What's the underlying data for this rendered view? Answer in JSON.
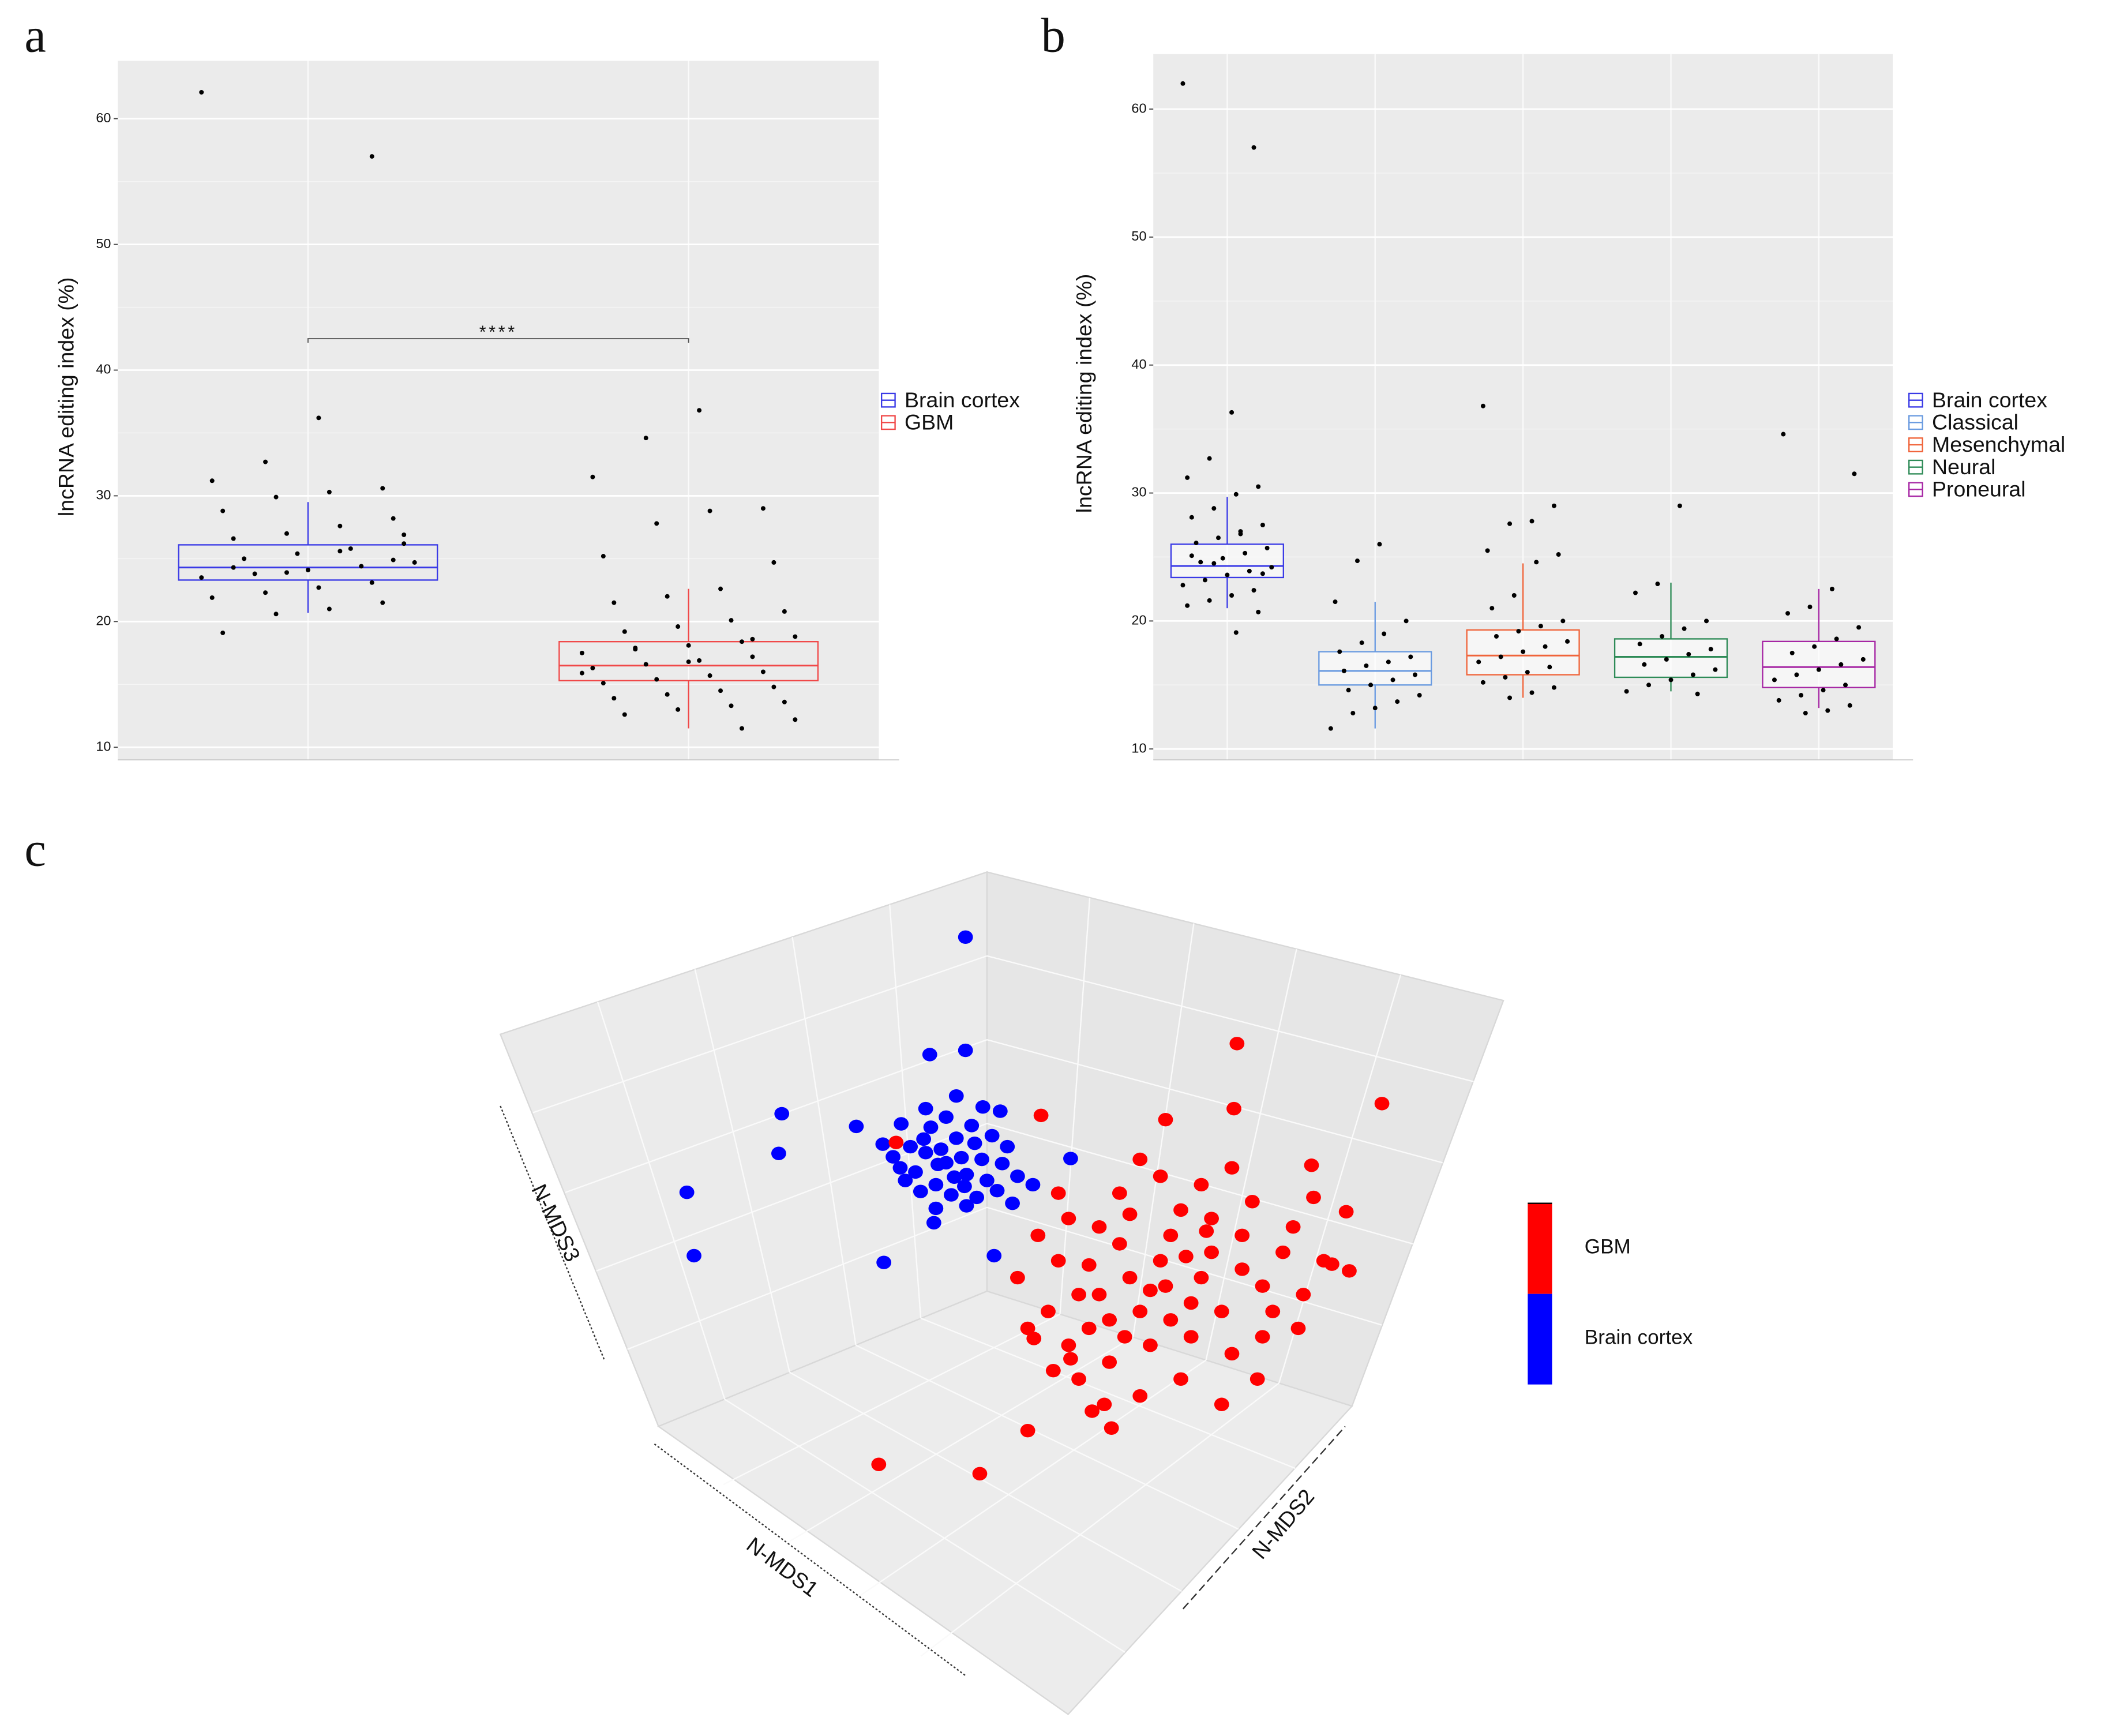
{
  "chart_data": [
    {
      "type": "box",
      "panel_label": "a",
      "y_label": "lncRNA editing index (%)",
      "ylim": [
        9.0,
        64.6
      ],
      "yticks": [
        10,
        20,
        30,
        40,
        50,
        60
      ],
      "grid": true,
      "significance": {
        "label": "****",
        "y": 42.5
      },
      "series": [
        {
          "name": "Brain cortex",
          "color": "#3a3ae6",
          "whisker_low": 20.7,
          "q1": 23.3,
          "median": 24.3,
          "q3": 26.1,
          "whisker_high": 29.5,
          "points": [
            62.1,
            57,
            36.2,
            32.7,
            31.2,
            30.6,
            30.3,
            29.9,
            28.8,
            28.2,
            27.6,
            27,
            26.6,
            26.2,
            25.8,
            25.4,
            25,
            24.7,
            24.4,
            24.1,
            23.8,
            23.5,
            23.1,
            22.7,
            22.3,
            21.9,
            21.5,
            21,
            20.6,
            19.1,
            24.9,
            25.6,
            23.9,
            24.3,
            26.9
          ]
        },
        {
          "name": "GBM",
          "color": "#f04848",
          "whisker_low": 11.5,
          "q1": 15.3,
          "median": 16.5,
          "q3": 18.4,
          "whisker_high": 22.6,
          "points": [
            36.8,
            34.6,
            31.5,
            29,
            28.8,
            27.8,
            25.2,
            24.7,
            22.6,
            22,
            21.5,
            20.8,
            20.1,
            19.6,
            19.2,
            18.8,
            18.4,
            18.1,
            17.8,
            17.5,
            17.2,
            16.9,
            16.6,
            16.3,
            16,
            15.7,
            15.4,
            15.1,
            14.8,
            14.5,
            14.2,
            13.9,
            13.6,
            13.3,
            13,
            12.6,
            12.2,
            11.5,
            16.8,
            17.9,
            15.9,
            18.6
          ]
        }
      ]
    },
    {
      "type": "box",
      "panel_label": "b",
      "y_label": "lncRNA editing index (%)",
      "ylim": [
        9.15,
        64.3
      ],
      "yticks": [
        10,
        20,
        30,
        40,
        50,
        60
      ],
      "grid": true,
      "series": [
        {
          "name": "Brain cortex",
          "color": "#3a3ae6",
          "whisker_low": 21,
          "q1": 23.4,
          "median": 24.3,
          "q3": 26,
          "whisker_high": 29.7,
          "points": [
            62,
            57,
            36.3,
            32.7,
            31.2,
            30.5,
            29.9,
            28.8,
            28.1,
            27.5,
            27,
            26.5,
            26.1,
            25.7,
            25.3,
            24.9,
            24.6,
            24.2,
            23.9,
            23.6,
            23.2,
            22.8,
            22.4,
            22,
            21.6,
            21.2,
            20.7,
            19.1,
            24.5,
            25.1,
            23.7,
            26.8
          ]
        },
        {
          "name": "Classical",
          "color": "#6a9be0",
          "whisker_low": 11.6,
          "q1": 15,
          "median": 16.1,
          "q3": 17.6,
          "whisker_high": 21.5,
          "points": [
            26,
            24.7,
            21.5,
            20,
            19,
            18.3,
            17.6,
            17.2,
            16.8,
            16.5,
            16.1,
            15.8,
            15.4,
            15,
            14.6,
            14.2,
            13.7,
            13.2,
            12.8,
            11.6
          ]
        },
        {
          "name": "Mesenchymal",
          "color": "#f0643a",
          "whisker_low": 14,
          "q1": 15.8,
          "median": 17.3,
          "q3": 19.3,
          "whisker_high": 24.5,
          "points": [
            36.8,
            29,
            27.8,
            27.6,
            25.5,
            25.2,
            24.6,
            22,
            21,
            20,
            19.6,
            19.2,
            18.8,
            18.4,
            18,
            17.6,
            17.2,
            16.8,
            16.4,
            16,
            15.6,
            15.2,
            14.8,
            14.4,
            14
          ]
        },
        {
          "name": "Neural",
          "color": "#2e8b57",
          "whisker_low": 14.5,
          "q1": 15.6,
          "median": 17.2,
          "q3": 18.6,
          "whisker_high": 23,
          "points": [
            29,
            22.9,
            22.2,
            20,
            19.4,
            18.8,
            18.2,
            17.8,
            17.4,
            17,
            16.6,
            16.2,
            15.8,
            15.4,
            15,
            14.5,
            14.3
          ]
        },
        {
          "name": "Proneural",
          "color": "#a626a4",
          "whisker_low": 13.2,
          "q1": 14.8,
          "median": 16.4,
          "q3": 18.4,
          "whisker_high": 22.5,
          "points": [
            34.6,
            31.5,
            22.5,
            21.1,
            20.6,
            19.5,
            18.6,
            18,
            17.5,
            17,
            16.6,
            16.2,
            15.8,
            15.4,
            15,
            14.6,
            14.2,
            13.8,
            13.4,
            13,
            12.8
          ]
        }
      ]
    },
    {
      "type": "scatter3d",
      "panel_label": "c",
      "x_label": "N-MDS1",
      "y_label": "N-MDS2",
      "z_label": "N-MDS3",
      "series": [
        {
          "name": "Brain cortex",
          "color": "#0000ff",
          "points": [
            [
              46.9,
              92.3
            ],
            [
              43.4,
              78.4
            ],
            [
              46.9,
              78.9
            ],
            [
              28.9,
              71.4
            ],
            [
              28.6,
              66.7
            ],
            [
              36.2,
              69.9
            ],
            [
              19.6,
              62.1
            ],
            [
              20.3,
              54.6
            ],
            [
              38.9,
              53.8
            ],
            [
              49.7,
              54.6
            ],
            [
              57.2,
              66.1
            ],
            [
              50.3,
              71.7
            ],
            [
              45,
              65.6
            ],
            [
              43,
              66.8
            ],
            [
              47,
              64.2
            ],
            [
              41.5,
              67.5
            ],
            [
              48.5,
              66
            ],
            [
              44,
              63
            ],
            [
              46,
              68.5
            ],
            [
              42,
              64.5
            ],
            [
              49,
              63.5
            ],
            [
              45.5,
              61.8
            ],
            [
              43.5,
              69.8
            ],
            [
              47.5,
              70
            ],
            [
              40.5,
              65
            ],
            [
              50.5,
              65.5
            ],
            [
              44.5,
              67.2
            ],
            [
              46.5,
              66.2
            ],
            [
              42.5,
              62.2
            ],
            [
              48,
              61.5
            ],
            [
              41,
              63.5
            ],
            [
              51,
              67.5
            ],
            [
              45,
              71
            ],
            [
              39.8,
              66.3
            ],
            [
              47,
              60.5
            ],
            [
              44,
              60.2
            ],
            [
              49.5,
              68.8
            ],
            [
              43,
              72
            ],
            [
              46,
              73.5
            ],
            [
              50,
              62.3
            ],
            [
              52,
              64
            ],
            [
              38.8,
              67.8
            ],
            [
              45.8,
              63.9
            ],
            [
              44.2,
              65.4
            ],
            [
              47.8,
              67.9
            ],
            [
              42.8,
              68.4
            ],
            [
              46.8,
              62.8
            ],
            [
              53.5,
              63
            ],
            [
              51.5,
              60.8
            ],
            [
              43.8,
              58.5
            ],
            [
              40.6,
              70.2
            ],
            [
              48.6,
              72.2
            ]
          ]
        },
        {
          "name": "GBM",
          "color": "#ff0000",
          "points": [
            [
              40.1,
              68.0
            ],
            [
              73.5,
              79.7
            ],
            [
              87.7,
              72.6
            ],
            [
              73.2,
              72.0
            ],
            [
              54.3,
              71.2
            ],
            [
              66.5,
              70.7
            ],
            [
              84.2,
              59.8
            ],
            [
              84.5,
              52.8
            ],
            [
              82.8,
              53.6
            ],
            [
              53.0,
              33.9
            ],
            [
              38.4,
              29.9
            ],
            [
              48.3,
              28.8
            ],
            [
              59.3,
              36.2
            ],
            [
              61.2,
              34.2
            ],
            [
              80.8,
              65.3
            ],
            [
              53.6,
              44.8
            ],
            [
              57.2,
              42.4
            ],
            [
              66,
              54
            ],
            [
              62,
              56
            ],
            [
              70,
              52
            ],
            [
              58,
              50
            ],
            [
              74,
              57
            ],
            [
              64,
              48
            ],
            [
              68,
              60
            ],
            [
              60,
              58
            ],
            [
              72,
              48
            ],
            [
              56,
              54
            ],
            [
              76,
              51
            ],
            [
              63,
              52
            ],
            [
              67,
              57
            ],
            [
              71,
              55
            ],
            [
              59,
              46
            ],
            [
              65,
              44
            ],
            [
              69,
              45
            ],
            [
              73,
              43
            ],
            [
              61,
              42
            ],
            [
              55,
              48
            ],
            [
              57,
              59
            ],
            [
              75,
              61
            ],
            [
              78,
              55
            ],
            [
              80,
              50
            ],
            [
              62,
              62
            ],
            [
              66,
              64
            ],
            [
              70,
              63
            ],
            [
              54,
              57
            ],
            [
              52,
              52
            ],
            [
              58,
              40
            ],
            [
              64,
              38
            ],
            [
              68,
              40
            ],
            [
              72,
              37
            ],
            [
              76,
              45
            ],
            [
              79,
              58
            ],
            [
              82,
              54
            ],
            [
              60,
              50
            ],
            [
              65,
              50.5
            ],
            [
              69,
              49
            ],
            [
              63,
              59.5
            ],
            [
              67,
              47
            ],
            [
              71,
              59
            ],
            [
              57,
              44
            ],
            [
              61,
              47
            ],
            [
              74,
              53
            ],
            [
              77,
              48
            ],
            [
              53,
              46
            ],
            [
              56,
              62
            ],
            [
              73,
              65
            ],
            [
              64,
              66
            ],
            [
              59,
              53.5
            ],
            [
              66.5,
              51
            ],
            [
              70.5,
              57.5
            ],
            [
              62.5,
              45
            ],
            [
              68.5,
              54.5
            ],
            [
              75.5,
              40
            ],
            [
              79.5,
              46
            ],
            [
              81,
              61.5
            ],
            [
              55.5,
              41
            ],
            [
              60.5,
              37
            ]
          ]
        }
      ]
    }
  ]
}
